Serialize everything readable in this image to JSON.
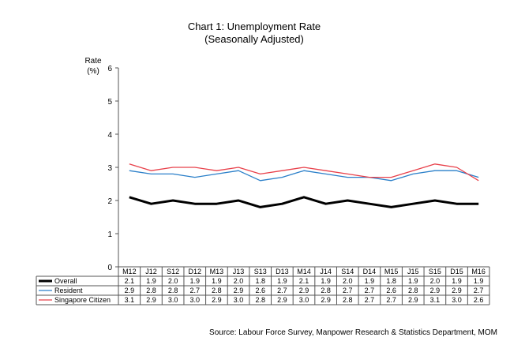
{
  "chart_data": {
    "type": "line",
    "title": "Chart 1: Unemployment Rate",
    "subtitle": "(Seasonally Adjusted)",
    "ylabel_line1": "Rate",
    "ylabel_line2": "(%)",
    "ylim": [
      0,
      6
    ],
    "yticks": [
      "0",
      "1",
      "2",
      "3",
      "4",
      "5",
      "6"
    ],
    "categories": [
      "M12",
      "J12",
      "S12",
      "D12",
      "M13",
      "J13",
      "S13",
      "D13",
      "M14",
      "J14",
      "S14",
      "D14",
      "M15",
      "J15",
      "S15",
      "D15",
      "M16"
    ],
    "series": [
      {
        "name": "Overall",
        "color": "#000000",
        "values": [
          2.1,
          1.9,
          2.0,
          1.9,
          1.9,
          2.0,
          1.8,
          1.9,
          2.1,
          1.9,
          2.0,
          1.9,
          1.8,
          1.9,
          2.0,
          1.9,
          1.9
        ],
        "labels": [
          "2.1",
          "1.9",
          "2.0",
          "1.9",
          "1.9",
          "2.0",
          "1.8",
          "1.9",
          "2.1",
          "1.9",
          "2.0",
          "1.9",
          "1.8",
          "1.9",
          "2.0",
          "1.9",
          "1.9"
        ]
      },
      {
        "name": "Resident",
        "color": "#2a7fc9",
        "values": [
          2.9,
          2.8,
          2.8,
          2.7,
          2.8,
          2.9,
          2.6,
          2.7,
          2.9,
          2.8,
          2.7,
          2.7,
          2.6,
          2.8,
          2.9,
          2.9,
          2.7
        ],
        "labels": [
          "2.9",
          "2.8",
          "2.8",
          "2.7",
          "2.8",
          "2.9",
          "2.6",
          "2.7",
          "2.9",
          "2.8",
          "2.7",
          "2.7",
          "2.6",
          "2.8",
          "2.9",
          "2.9",
          "2.7"
        ]
      },
      {
        "name": "Singapore Citizen",
        "color": "#e8404a",
        "values": [
          3.1,
          2.9,
          3.0,
          3.0,
          2.9,
          3.0,
          2.8,
          2.9,
          3.0,
          2.9,
          2.8,
          2.7,
          2.7,
          2.9,
          3.1,
          3.0,
          2.6
        ],
        "labels": [
          "3.1",
          "2.9",
          "3.0",
          "3.0",
          "2.9",
          "3.0",
          "2.8",
          "2.9",
          "3.0",
          "2.9",
          "2.8",
          "2.7",
          "2.7",
          "2.9",
          "3.1",
          "3.0",
          "2.6"
        ]
      }
    ],
    "source": "Source: Labour Force Survey, Manpower Research & Statistics Department, MOM"
  }
}
